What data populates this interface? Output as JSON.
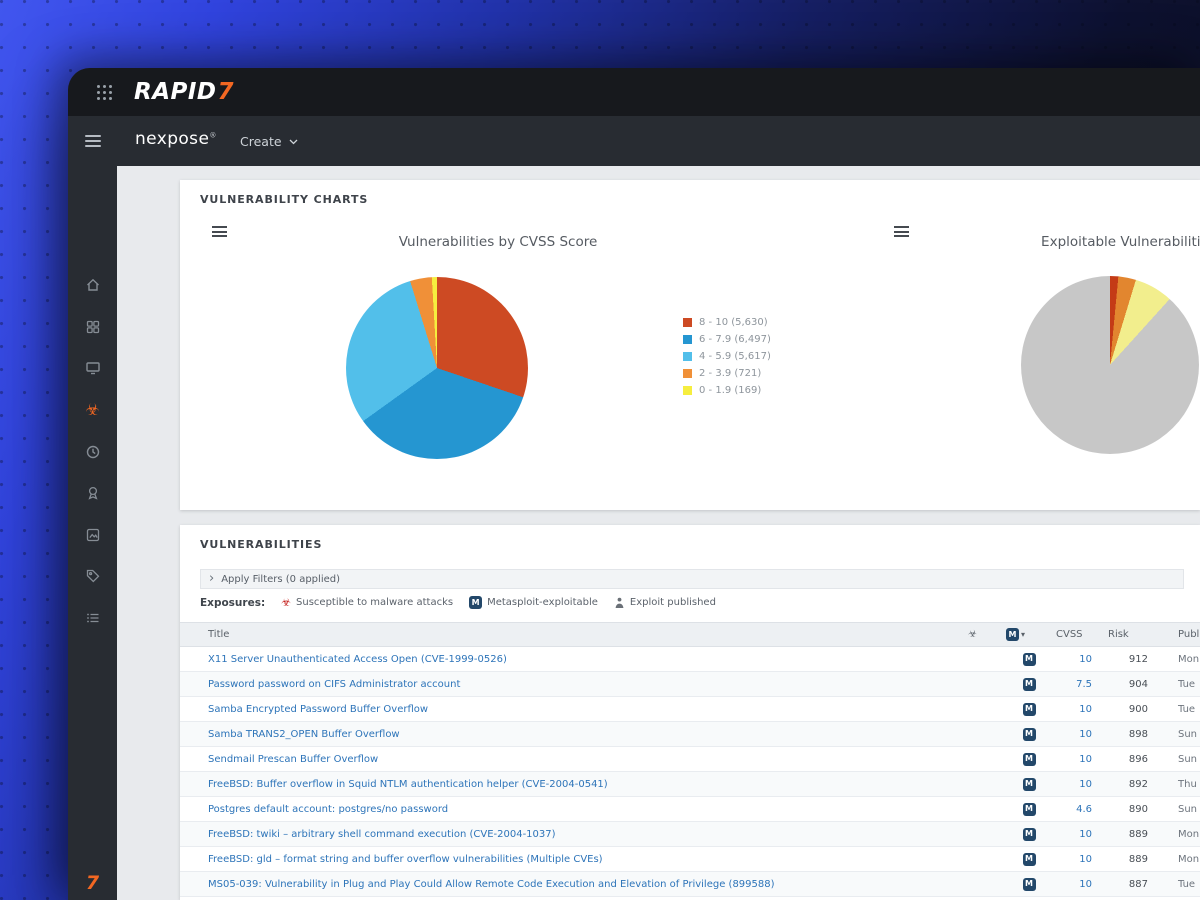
{
  "topbar": {
    "brand_rapid": "RAPID",
    "brand_seven": "7"
  },
  "navbar": {
    "product": "nexpose",
    "product_mark": "®",
    "create_label": "Create"
  },
  "glyphs": {
    "biohazard": "☣",
    "metasploit_letter": "M",
    "ms_chevron": "▾",
    "filter_chevron": "›"
  },
  "sidebar": {
    "items": [
      {
        "icon": "home-icon",
        "active": false
      },
      {
        "icon": "sites-grid-icon",
        "active": false
      },
      {
        "icon": "assets-monitor-icon",
        "active": false
      },
      {
        "icon": "vulnerabilities-biohazard-icon",
        "active": true
      },
      {
        "icon": "policies-clock-icon",
        "active": false
      },
      {
        "icon": "reports-award-icon",
        "active": false
      },
      {
        "icon": "tickets-image-icon",
        "active": false
      },
      {
        "icon": "tags-icon",
        "active": false
      },
      {
        "icon": "administration-list-icon",
        "active": false
      }
    ],
    "bottom_logo": "7"
  },
  "charts_panel": {
    "title": "VULNERABILITY CHARTS",
    "chart_data": [
      {
        "type": "pie",
        "title": "Vulnerabilities by CVSS Score",
        "legend_position": "right",
        "segments": [
          {
            "label": "8 - 10",
            "value": 5630,
            "display": "8 - 10 (5,630)",
            "color": "#cd4a23"
          },
          {
            "label": "6 - 7.9",
            "value": 6497,
            "display": "6 - 7.9 (6,497)",
            "color": "#2596d1"
          },
          {
            "label": "4 - 5.9",
            "value": 5617,
            "display": "4 - 5.9 (5,617)",
            "color": "#52bfea"
          },
          {
            "label": "2 - 3.9",
            "value": 721,
            "display": "2 - 3.9 (721)",
            "color": "#f09038"
          },
          {
            "label": "0 - 1.9",
            "value": 169,
            "display": "0 - 1.9 (169)",
            "color": "#f6ee3f"
          }
        ]
      },
      {
        "type": "pie",
        "title": "Exploitable Vulnerabilities by CVSS Score",
        "legend_position": "offscreen-right",
        "segments": [
          {
            "value": 1.5,
            "color": "#c43b16"
          },
          {
            "value": 3.2,
            "color": "#e2862f"
          },
          {
            "value": 7.0,
            "color": "#f2ee8d"
          },
          {
            "value": 88.3,
            "color": "#c7c7c7"
          }
        ]
      }
    ]
  },
  "vulns_panel": {
    "title": "VULNERABILITIES",
    "filter_bar": {
      "label": "Apply Filters (0 applied)"
    },
    "exposures_legend": {
      "label": "Exposures:",
      "items": [
        {
          "icon": "biohazard-icon",
          "label": "Susceptible to malware attacks"
        },
        {
          "icon": "metasploit-icon",
          "label": "Metasploit-exploitable"
        },
        {
          "icon": "exploit-published-icon",
          "label": "Exploit published"
        }
      ]
    },
    "table": {
      "columns": [
        {
          "key": "title",
          "label": "Title"
        },
        {
          "key": "malware",
          "label": "",
          "icon": "biohazard-icon"
        },
        {
          "key": "metasploit",
          "label": "",
          "icon": "metasploit-icon"
        },
        {
          "key": "cvss",
          "label": "CVSS"
        },
        {
          "key": "risk",
          "label": "Risk"
        },
        {
          "key": "published",
          "label": "Published On"
        }
      ],
      "rows": [
        {
          "title": "X11 Server Unauthenticated Access Open (CVE-1999-0526)",
          "metasploit": true,
          "cvss": "10",
          "risk": "912",
          "published": "Mon"
        },
        {
          "title": "Password password on CIFS Administrator account",
          "metasploit": true,
          "cvss": "7.5",
          "risk": "904",
          "published": "Tue"
        },
        {
          "title": "Samba Encrypted Password Buffer Overflow",
          "metasploit": true,
          "cvss": "10",
          "risk": "900",
          "published": "Tue"
        },
        {
          "title": "Samba TRANS2_OPEN Buffer Overflow",
          "metasploit": true,
          "cvss": "10",
          "risk": "898",
          "published": "Sun"
        },
        {
          "title": "Sendmail Prescan Buffer Overflow",
          "metasploit": true,
          "cvss": "10",
          "risk": "896",
          "published": "Sun"
        },
        {
          "title": "FreeBSD: Buffer overflow in Squid NTLM authentication helper (CVE-2004-0541)",
          "metasploit": true,
          "cvss": "10",
          "risk": "892",
          "published": "Thu"
        },
        {
          "title": "Postgres default account: postgres/no password",
          "metasploit": true,
          "cvss": "4.6",
          "risk": "890",
          "published": "Sun"
        },
        {
          "title": "FreeBSD: twiki – arbitrary shell command execution (CVE-2004-1037)",
          "metasploit": true,
          "cvss": "10",
          "risk": "889",
          "published": "Mon"
        },
        {
          "title": "FreeBSD: gld – format string and buffer overflow vulnerabilities (Multiple CVEs)",
          "metasploit": true,
          "cvss": "10",
          "risk": "889",
          "published": "Mon"
        },
        {
          "title": "MS05-039: Vulnerability in Plug and Play Could Allow Remote Code Execution and Elevation of Privilege (899588)",
          "metasploit": true,
          "cvss": "10",
          "risk": "887",
          "published": "Tue"
        }
      ]
    }
  }
}
